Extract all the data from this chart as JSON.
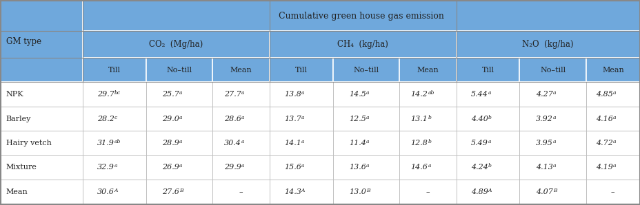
{
  "title": "Cumulative green house gas emission",
  "header_bg": "#6fa8dc",
  "row_bg": "#ffffff",
  "text_color": "#222222",
  "gm_types": [
    "NPK",
    "Barley",
    "Hairy vetch",
    "Mixture",
    "Mean"
  ],
  "co2_till": [
    "29.7",
    "28.2",
    "31.9",
    "32.9",
    "30.6"
  ],
  "co2_notill": [
    "25.7",
    "29.0",
    "28.9",
    "26.9",
    "27.6"
  ],
  "co2_mean": [
    "27.7",
    "28.6",
    "30.4",
    "29.9",
    "–"
  ],
  "ch4_till": [
    "13.8",
    "13.7",
    "14.1",
    "15.6",
    "14.3"
  ],
  "ch4_notill": [
    "14.5",
    "12.5",
    "11.4",
    "13.6",
    "13.0"
  ],
  "ch4_mean": [
    "14.2",
    "13.1",
    "12.8",
    "14.6",
    "–"
  ],
  "n2o_till": [
    "5.44",
    "4.40",
    "5.49",
    "4.24",
    "4.89"
  ],
  "n2o_notill": [
    "4.27",
    "3.92",
    "3.95",
    "4.13",
    "4.07"
  ],
  "n2o_mean": [
    "4.85",
    "4.16",
    "4.72",
    "4.19",
    "–"
  ],
  "co2_till_sup": [
    "bc",
    "c",
    "ab",
    "a",
    "A"
  ],
  "co2_notill_sup": [
    "a",
    "a",
    "a",
    "a",
    "B"
  ],
  "co2_mean_sup": [
    "a",
    "a",
    "a",
    "a",
    ""
  ],
  "ch4_till_sup": [
    "a",
    "a",
    "a",
    "a",
    "A"
  ],
  "ch4_notill_sup": [
    "a",
    "a",
    "a",
    "a",
    "B"
  ],
  "ch4_mean_sup": [
    "ab",
    "b",
    "b",
    "a",
    ""
  ],
  "n2o_till_sup": [
    "a",
    "b",
    "a",
    "b",
    "A"
  ],
  "n2o_notill_sup": [
    "a",
    "a",
    "a",
    "a",
    "B"
  ],
  "n2o_mean_sup": [
    "a",
    "a",
    "a",
    "a",
    ""
  ],
  "figsize": [
    9.29,
    2.98
  ],
  "dpi": 100
}
